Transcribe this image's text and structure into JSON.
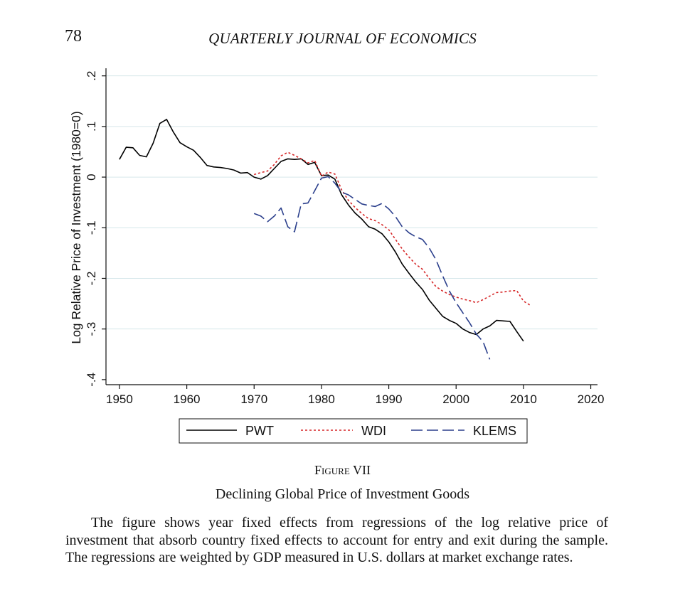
{
  "header": {
    "page_number": "78",
    "journal": "QUARTERLY JOURNAL OF ECONOMICS"
  },
  "figure": {
    "label_word": "Figure",
    "label_number": "VII",
    "title": "Declining Global Price of Investment Goods",
    "caption": "The figure shows year fixed effects from regressions of the log relative price of investment that absorb country fixed effects to account for entry and exit during the sample. The regressions are weighted by GDP measured in U.S. dollars at market exchange rates."
  },
  "chart_data": {
    "type": "line",
    "title": "",
    "xlabel": "",
    "ylabel": "Log Relative Price of Investment (1980=0)",
    "xlim": [
      1948,
      2021
    ],
    "ylim": [
      -0.41,
      0.215
    ],
    "x_ticks": [
      1950,
      1960,
      1970,
      1980,
      1990,
      2000,
      2010,
      2020
    ],
    "y_ticks": [
      -0.4,
      -0.3,
      -0.2,
      -0.1,
      0,
      0.1,
      0.2
    ],
    "y_tick_labels": [
      "-.4",
      "-.3",
      "-.2",
      "-.1",
      "0",
      ".1",
      ".2"
    ],
    "horizontal_gridlines": true,
    "legend_position": "bottom",
    "series": [
      {
        "name": "PWT",
        "color": "#000000",
        "style": "solid",
        "points": [
          [
            1950,
            0.035
          ],
          [
            1951,
            0.059
          ],
          [
            1952,
            0.058
          ],
          [
            1953,
            0.043
          ],
          [
            1954,
            0.04
          ],
          [
            1955,
            0.067
          ],
          [
            1956,
            0.106
          ],
          [
            1957,
            0.114
          ],
          [
            1958,
            0.089
          ],
          [
            1959,
            0.068
          ],
          [
            1960,
            0.06
          ],
          [
            1961,
            0.053
          ],
          [
            1962,
            0.039
          ],
          [
            1963,
            0.023
          ],
          [
            1964,
            0.02
          ],
          [
            1965,
            0.019
          ],
          [
            1966,
            0.017
          ],
          [
            1967,
            0.014
          ],
          [
            1968,
            0.008
          ],
          [
            1969,
            0.009
          ],
          [
            1970,
            0.0
          ],
          [
            1971,
            -0.004
          ],
          [
            1972,
            0.003
          ],
          [
            1973,
            0.017
          ],
          [
            1974,
            0.031
          ],
          [
            1975,
            0.036
          ],
          [
            1976,
            0.035
          ],
          [
            1977,
            0.036
          ],
          [
            1978,
            0.025
          ],
          [
            1979,
            0.029
          ],
          [
            1980,
            0.003
          ],
          [
            1981,
            0.004
          ],
          [
            1982,
            -0.004
          ],
          [
            1983,
            -0.035
          ],
          [
            1984,
            -0.055
          ],
          [
            1985,
            -0.071
          ],
          [
            1986,
            -0.083
          ],
          [
            1987,
            -0.098
          ],
          [
            1988,
            -0.103
          ],
          [
            1989,
            -0.112
          ],
          [
            1990,
            -0.128
          ],
          [
            1991,
            -0.148
          ],
          [
            1992,
            -0.172
          ],
          [
            1993,
            -0.19
          ],
          [
            1994,
            -0.207
          ],
          [
            1995,
            -0.222
          ],
          [
            1996,
            -0.243
          ],
          [
            1997,
            -0.259
          ],
          [
            1998,
            -0.275
          ],
          [
            1999,
            -0.283
          ],
          [
            2000,
            -0.289
          ],
          [
            2001,
            -0.3
          ],
          [
            2002,
            -0.307
          ],
          [
            2003,
            -0.311
          ],
          [
            2004,
            -0.3
          ],
          [
            2005,
            -0.294
          ],
          [
            2006,
            -0.283
          ],
          [
            2007,
            -0.284
          ],
          [
            2008,
            -0.285
          ],
          [
            2009,
            -0.305
          ],
          [
            2010,
            -0.324
          ]
        ]
      },
      {
        "name": "WDI",
        "color": "#d62728",
        "style": "dotted",
        "points": [
          [
            1970,
            0.005
          ],
          [
            1971,
            0.009
          ],
          [
            1972,
            0.012
          ],
          [
            1973,
            0.025
          ],
          [
            1974,
            0.042
          ],
          [
            1975,
            0.049
          ],
          [
            1976,
            0.043
          ],
          [
            1977,
            0.036
          ],
          [
            1978,
            0.028
          ],
          [
            1979,
            0.033
          ],
          [
            1980,
            0.002
          ],
          [
            1981,
            0.01
          ],
          [
            1982,
            0.006
          ],
          [
            1983,
            -0.025
          ],
          [
            1984,
            -0.046
          ],
          [
            1985,
            -0.06
          ],
          [
            1986,
            -0.072
          ],
          [
            1987,
            -0.082
          ],
          [
            1988,
            -0.086
          ],
          [
            1989,
            -0.094
          ],
          [
            1990,
            -0.104
          ],
          [
            1991,
            -0.123
          ],
          [
            1992,
            -0.142
          ],
          [
            1993,
            -0.158
          ],
          [
            1994,
            -0.172
          ],
          [
            1995,
            -0.182
          ],
          [
            1996,
            -0.2
          ],
          [
            1997,
            -0.216
          ],
          [
            1998,
            -0.225
          ],
          [
            1999,
            -0.232
          ],
          [
            2000,
            -0.237
          ],
          [
            2001,
            -0.241
          ],
          [
            2002,
            -0.244
          ],
          [
            2003,
            -0.248
          ],
          [
            2004,
            -0.242
          ],
          [
            2005,
            -0.235
          ],
          [
            2006,
            -0.228
          ],
          [
            2007,
            -0.227
          ],
          [
            2008,
            -0.225
          ],
          [
            2009,
            -0.224
          ],
          [
            2010,
            -0.245
          ],
          [
            2011,
            -0.253
          ]
        ]
      },
      {
        "name": "KLEMS",
        "color": "#2b3f8c",
        "style": "dashed",
        "points": [
          [
            1970,
            -0.072
          ],
          [
            1971,
            -0.077
          ],
          [
            1972,
            -0.088
          ],
          [
            1973,
            -0.077
          ],
          [
            1974,
            -0.061
          ],
          [
            1975,
            -0.098
          ],
          [
            1976,
            -0.108
          ],
          [
            1977,
            -0.053
          ],
          [
            1978,
            -0.051
          ],
          [
            1979,
            -0.027
          ],
          [
            1980,
            -0.002
          ],
          [
            1981,
            0.001
          ],
          [
            1982,
            -0.012
          ],
          [
            1983,
            -0.03
          ],
          [
            1984,
            -0.035
          ],
          [
            1985,
            -0.044
          ],
          [
            1986,
            -0.053
          ],
          [
            1987,
            -0.056
          ],
          [
            1988,
            -0.058
          ],
          [
            1989,
            -0.052
          ],
          [
            1990,
            -0.063
          ],
          [
            1991,
            -0.078
          ],
          [
            1992,
            -0.098
          ],
          [
            1993,
            -0.11
          ],
          [
            1994,
            -0.118
          ],
          [
            1995,
            -0.123
          ],
          [
            1996,
            -0.14
          ],
          [
            1997,
            -0.163
          ],
          [
            1998,
            -0.195
          ],
          [
            1999,
            -0.225
          ],
          [
            2000,
            -0.248
          ],
          [
            2001,
            -0.268
          ],
          [
            2002,
            -0.288
          ],
          [
            2003,
            -0.31
          ],
          [
            2004,
            -0.325
          ],
          [
            2005,
            -0.36
          ]
        ]
      }
    ]
  }
}
